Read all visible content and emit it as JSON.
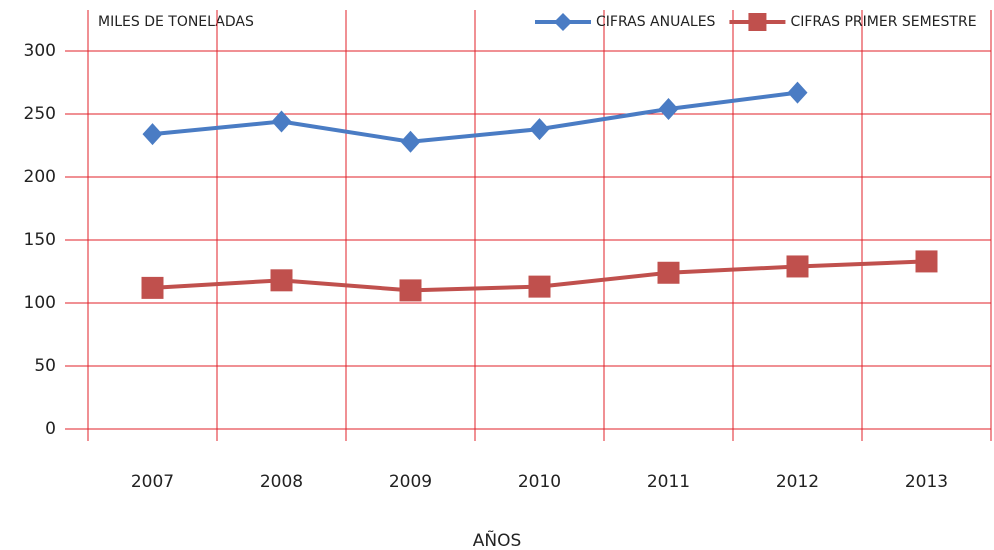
{
  "chart_data": {
    "type": "line",
    "title": "MILES DE TONELADAS",
    "x_label": "AÑOS",
    "categories": [
      "2007",
      "2008",
      "2009",
      "2010",
      "2011",
      "2012",
      "2013"
    ],
    "series": [
      {
        "name": "CIFRAS ANUALES",
        "color": "#4a7cc4",
        "marker": "diamond",
        "values": [
          234,
          244,
          228,
          238,
          254,
          267,
          null
        ]
      },
      {
        "name": "CIFRAS PRIMER SEMESTRE",
        "color": "#c0504d",
        "marker": "square",
        "values": [
          112,
          118,
          110,
          113,
          124,
          129,
          133
        ]
      }
    ],
    "ylim": [
      0,
      300
    ],
    "yticks": [
      0,
      50,
      100,
      150,
      200,
      250,
      300
    ],
    "grid": true,
    "grid_color": "#e0202a",
    "legend": "top-right"
  }
}
